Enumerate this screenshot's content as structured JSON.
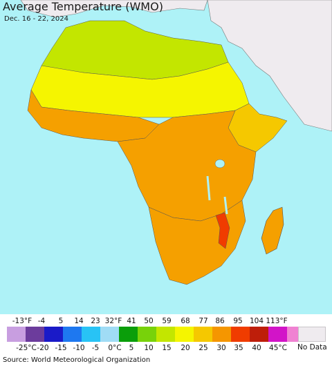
{
  "header": {
    "title": "Average Temperature (WMO)",
    "date_range": "Dec. 16 - 22, 2024"
  },
  "map": {
    "region": "Africa",
    "ocean_color": "#aef2f7",
    "non_africa_land_color": "#efebef"
  },
  "legend": {
    "fahrenheit_labels": [
      "-13°F",
      "-4",
      "5",
      "14",
      "23",
      "32°F",
      "41",
      "50",
      "59",
      "68",
      "77",
      "86",
      "95",
      "104",
      "113°F"
    ],
    "celsius_labels": [
      "-25°C",
      "-20",
      "-15",
      "-10",
      "-5",
      "0°C",
      "5",
      "10",
      "15",
      "20",
      "25",
      "30",
      "35",
      "40",
      "45°C"
    ],
    "colors": [
      "#c89ee0",
      "#6c3c9c",
      "#1a1ac8",
      "#1e78f0",
      "#28c3f5",
      "#a0dcf5",
      "#0a9e0a",
      "#78d20a",
      "#c3e600",
      "#f5f500",
      "#f5c800",
      "#f59600",
      "#f03c00",
      "#be1e0a",
      "#d214c8",
      "#f082d2"
    ],
    "no_data_label": "No Data",
    "no_data_color": "#efebef"
  },
  "footer": {
    "source": "Source: World Meteorological Organization"
  }
}
